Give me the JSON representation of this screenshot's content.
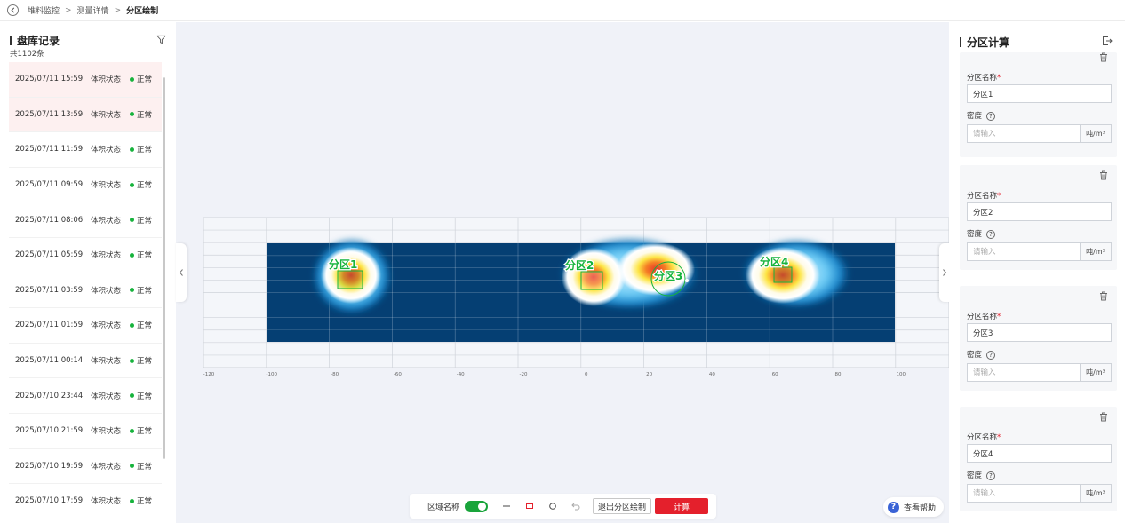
{
  "breadcrumb": {
    "items": [
      "堆料监控",
      "测量详情",
      "分区绘制"
    ],
    "separator": ">"
  },
  "left_panel": {
    "title": "盘库记录",
    "count": "共1102条",
    "records": [
      {
        "time": "2025/07/11 15:59",
        "label": "体积状态",
        "status": "正常",
        "active": true
      },
      {
        "time": "2025/07/11 13:59",
        "label": "体积状态",
        "status": "正常",
        "active": true
      },
      {
        "time": "2025/07/11 11:59",
        "label": "体积状态",
        "status": "正常"
      },
      {
        "time": "2025/07/11 09:59",
        "label": "体积状态",
        "status": "正常"
      },
      {
        "time": "2025/07/11 08:06",
        "label": "体积状态",
        "status": "正常"
      },
      {
        "time": "2025/07/11 05:59",
        "label": "体积状态",
        "status": "正常"
      },
      {
        "time": "2025/07/11 03:59",
        "label": "体积状态",
        "status": "正常"
      },
      {
        "time": "2025/07/11 01:59",
        "label": "体积状态",
        "status": "正常"
      },
      {
        "time": "2025/07/11 00:14",
        "label": "体积状态",
        "status": "正常"
      },
      {
        "time": "2025/07/10 23:44",
        "label": "体积状态",
        "status": "正常"
      },
      {
        "time": "2025/07/10 21:59",
        "label": "体积状态",
        "status": "正常"
      },
      {
        "time": "2025/07/10 19:59",
        "label": "体积状态",
        "status": "正常"
      },
      {
        "time": "2025/07/10 17:59",
        "label": "体积状态",
        "status": "正常"
      }
    ],
    "status_color": "#16b33c"
  },
  "canvas": {
    "x_ticks": [
      "-120",
      "-100",
      "-80",
      "-60",
      "-40",
      "-20",
      "0",
      "20",
      "40",
      "60",
      "80",
      "100"
    ],
    "zones": [
      {
        "name": "分区1",
        "shape": "rect"
      },
      {
        "name": "分区2",
        "shape": "rect"
      },
      {
        "name": "分区3",
        "shape": "circle"
      },
      {
        "name": "分区4",
        "shape": "rect"
      }
    ],
    "field_color": "#053f73",
    "zone_color": "#16b33c"
  },
  "toolbar": {
    "area_name_label": "区域名称",
    "area_name_toggle": true,
    "exit_label": "退出分区绘制",
    "calc_label": "计算",
    "tools": [
      "line-tool-icon",
      "rect-tool-icon",
      "circle-tool-icon",
      "undo-icon"
    ]
  },
  "help": {
    "label": "查看帮助"
  },
  "right_panel": {
    "title": "分区计算",
    "name_label": "分区名称",
    "required_mark": "*",
    "density_label": "密度",
    "density_help": "?",
    "density_placeholder": "请输入",
    "unit": "吨/m³",
    "zones": [
      {
        "name": "分区1",
        "density": ""
      },
      {
        "name": "分区2",
        "density": ""
      },
      {
        "name": "分区3",
        "density": ""
      },
      {
        "name": "分区4",
        "density": ""
      }
    ]
  }
}
